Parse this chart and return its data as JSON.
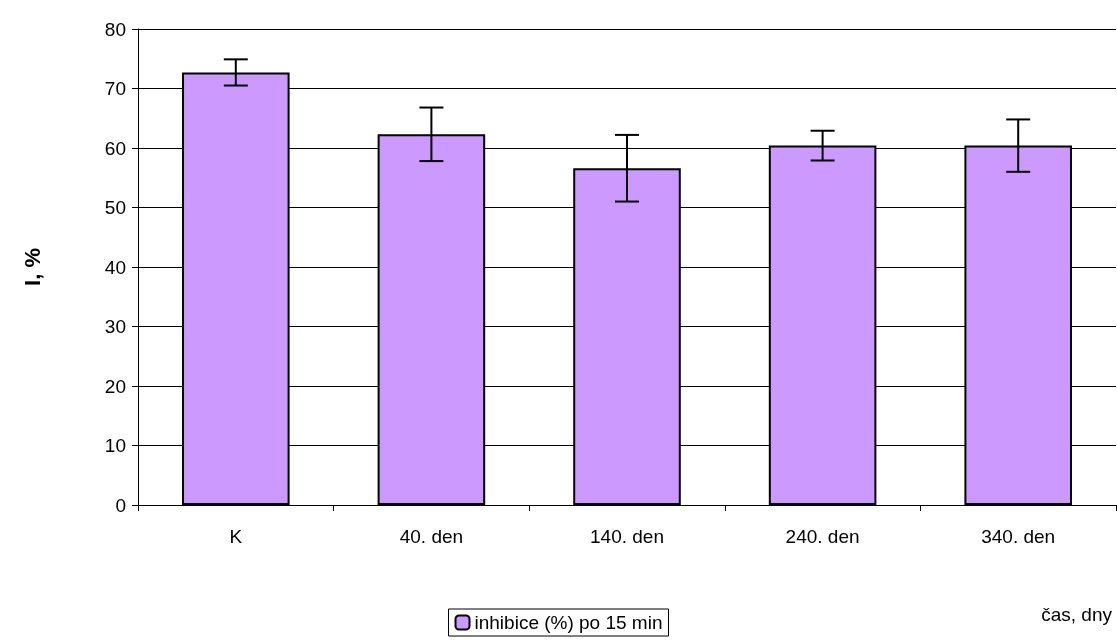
{
  "chart_data": {
    "type": "bar",
    "xlabel": "čas, dny",
    "ylabel": "I, %",
    "categories": [
      "K",
      "40. den",
      "140. den",
      "240. den",
      "340. den"
    ],
    "series": [
      {
        "name": "inhibice (%) po 15 min",
        "color": "#cc99ff",
        "values": [
          72.7,
          62.3,
          56.6,
          60.4,
          60.4
        ],
        "errors": [
          2.2,
          4.5,
          5.6,
          2.5,
          4.4
        ]
      }
    ],
    "ylim": [
      0,
      80
    ],
    "yticks": [
      0,
      10,
      20,
      30,
      40,
      50,
      60,
      70,
      80
    ],
    "grid": "y",
    "legend": "bottom"
  }
}
